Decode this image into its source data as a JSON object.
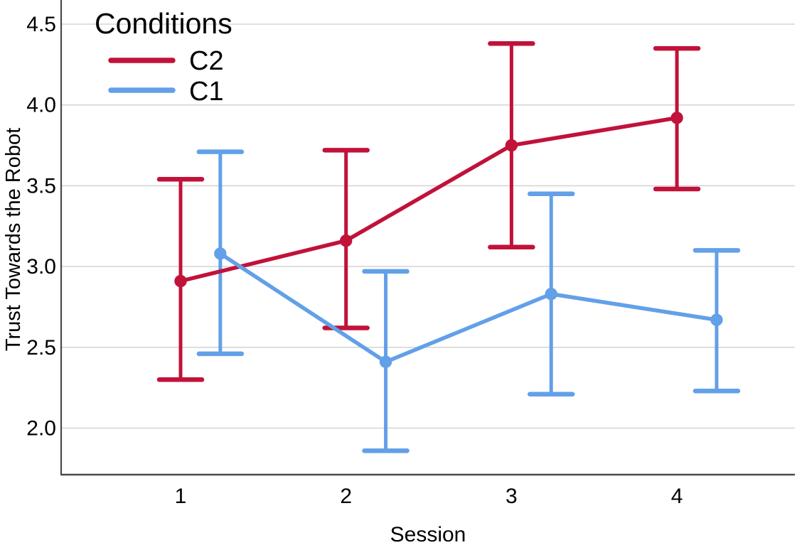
{
  "chart_data": {
    "type": "line",
    "title": "",
    "xlabel": "Session",
    "ylabel": "Trust Towards the Robot",
    "x": [
      1,
      2,
      3,
      4
    ],
    "x_tick_labels": [
      "1",
      "2",
      "3",
      "4"
    ],
    "y_ticks": [
      2.0,
      2.5,
      3.0,
      3.5,
      4.0,
      4.5
    ],
    "y_tick_labels": [
      "2.0",
      "2.5",
      "3.0",
      "3.5",
      "4.0",
      "4.5"
    ],
    "xlim": [
      0.28,
      4.73
    ],
    "ylim": [
      1.71,
      4.65
    ],
    "grid": "horizontal-only",
    "error_bars": true,
    "legend": {
      "title": "Conditions",
      "position": "top-left-inside",
      "entries": [
        {
          "label": "C2",
          "color": "#C1123A"
        },
        {
          "label": "C1",
          "color": "#62A0E8"
        }
      ]
    },
    "series": [
      {
        "name": "C2",
        "color": "#C1123A",
        "x_offset": 0.0,
        "values": [
          2.91,
          3.16,
          3.75,
          3.92
        ],
        "ci_low": [
          2.3,
          2.62,
          3.12,
          3.48
        ],
        "ci_high": [
          3.54,
          3.72,
          4.38,
          4.35
        ]
      },
      {
        "name": "C1",
        "color": "#62A0E8",
        "x_offset": 0.24,
        "values": [
          3.08,
          2.41,
          2.83,
          2.67
        ],
        "ci_low": [
          2.46,
          1.86,
          2.21,
          2.23
        ],
        "ci_high": [
          3.71,
          2.97,
          3.45,
          3.1
        ]
      }
    ]
  },
  "styles": {
    "background": "#FFFFFF",
    "grid_color": "#D6D6D6",
    "axis_color": "#4A4A4A",
    "text_color": "#000000"
  }
}
